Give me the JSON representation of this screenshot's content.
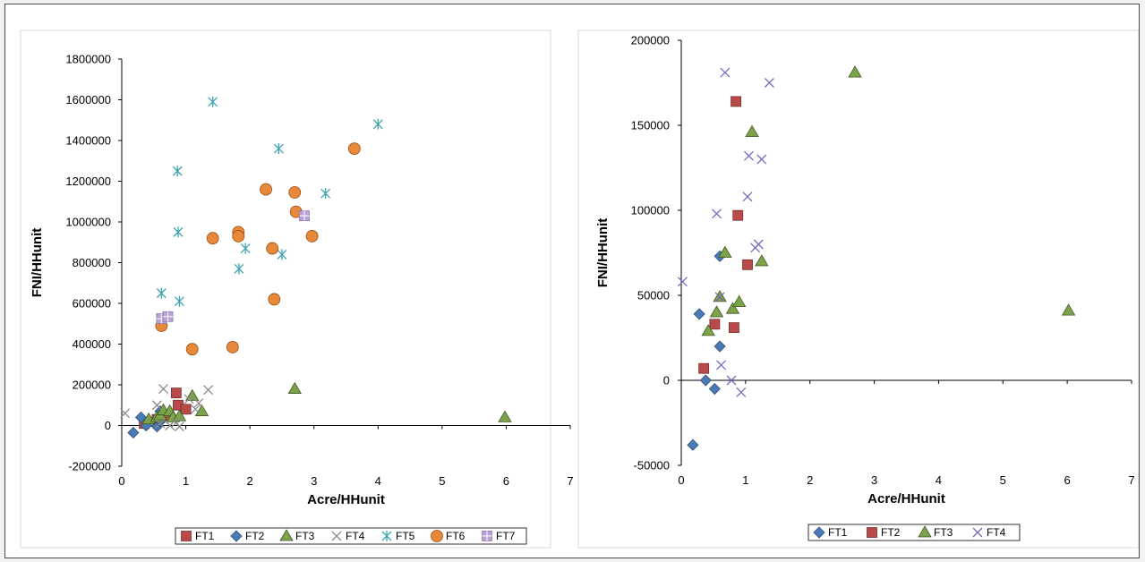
{
  "chart_data": [
    {
      "type": "scatter",
      "xlabel": "Acre/HHunit",
      "ylabel": "FNI/HHunit",
      "xlim": [
        0,
        7
      ],
      "ylim": [
        -200000,
        1800000
      ],
      "xticks": [
        "0",
        "1",
        "2",
        "3",
        "4",
        "5",
        "6",
        "7"
      ],
      "yticks": [
        "-200000",
        "0",
        "200000",
        "400000",
        "600000",
        "800000",
        "1000000",
        "1200000",
        "1400000",
        "1600000",
        "1800000"
      ],
      "legend": "bottom",
      "series": [
        {
          "name": "FT1",
          "marker": "square",
          "color": "#b94a4a",
          "points": [
            [
              0.85,
              160000
            ],
            [
              0.88,
              100000
            ],
            [
              1.0,
              80000
            ],
            [
              0.35,
              10000
            ],
            [
              0.55,
              30000
            ],
            [
              0.7,
              50000
            ]
          ]
        },
        {
          "name": "FT2",
          "marker": "diamond",
          "color": "#4b7bb5",
          "points": [
            [
              0.18,
              -35000
            ],
            [
              0.3,
              40000
            ],
            [
              0.38,
              0
            ],
            [
              0.55,
              -5000
            ],
            [
              0.6,
              20000
            ],
            [
              0.6,
              70000
            ]
          ]
        },
        {
          "name": "FT3",
          "marker": "triangle",
          "color": "#7da34a",
          "points": [
            [
              0.42,
              30000
            ],
            [
              0.55,
              40000
            ],
            [
              0.6,
              50000
            ],
            [
              0.65,
              75000
            ],
            [
              0.75,
              70000
            ],
            [
              0.8,
              40000
            ],
            [
              0.9,
              45000
            ],
            [
              1.1,
              145000
            ],
            [
              1.25,
              70000
            ],
            [
              2.7,
              180000
            ],
            [
              5.98,
              40000
            ]
          ]
        },
        {
          "name": "FT4",
          "marker": "x",
          "color": "#8a8a8a",
          "points": [
            [
              0.05,
              60000
            ],
            [
              0.55,
              100000
            ],
            [
              0.6,
              10000
            ],
            [
              0.65,
              180000
            ],
            [
              0.75,
              0
            ],
            [
              0.85,
              15000
            ],
            [
              0.9,
              -5000
            ],
            [
              1.05,
              130000
            ],
            [
              1.15,
              80000
            ],
            [
              1.2,
              110000
            ],
            [
              1.35,
              175000
            ]
          ]
        },
        {
          "name": "FT5",
          "marker": "star",
          "color": "#3ea3b0",
          "points": [
            [
              0.62,
              650000
            ],
            [
              0.87,
              1250000
            ],
            [
              0.88,
              950000
            ],
            [
              0.9,
              610000
            ],
            [
              1.42,
              1590000
            ],
            [
              1.83,
              770000
            ],
            [
              1.93,
              870000
            ],
            [
              2.45,
              1360000
            ],
            [
              2.5,
              840000
            ],
            [
              3.18,
              1140000
            ],
            [
              4.0,
              1480000
            ]
          ]
        },
        {
          "name": "FT6",
          "marker": "circle",
          "color": "#e8883a",
          "points": [
            [
              0.62,
              490000
            ],
            [
              1.1,
              375000
            ],
            [
              1.42,
              920000
            ],
            [
              1.73,
              385000
            ],
            [
              1.82,
              950000
            ],
            [
              1.82,
              930000
            ],
            [
              2.25,
              1160000
            ],
            [
              2.35,
              870000
            ],
            [
              2.38,
              620000
            ],
            [
              2.7,
              1145000
            ],
            [
              2.72,
              1050000
            ],
            [
              2.97,
              930000
            ],
            [
              3.63,
              1360000
            ]
          ]
        },
        {
          "name": "FT7",
          "marker": "square-cross",
          "color": "#b9a3d6",
          "points": [
            [
              0.62,
              525000
            ],
            [
              0.72,
              535000
            ],
            [
              2.85,
              1030000
            ]
          ]
        }
      ]
    },
    {
      "type": "scatter",
      "xlabel": "Acre/HHunit",
      "ylabel": "FNI/HHunit",
      "xlim": [
        0,
        7
      ],
      "ylim": [
        -50000,
        200000
      ],
      "xticks": [
        "0",
        "1",
        "2",
        "3",
        "4",
        "5",
        "6",
        "7"
      ],
      "yticks": [
        "-50000",
        "0",
        "50000",
        "100000",
        "150000",
        "200000"
      ],
      "legend": "bottom",
      "series": [
        {
          "name": "FT1",
          "marker": "diamond",
          "color": "#4b7bb5",
          "points": [
            [
              0.18,
              -38000
            ],
            [
              0.28,
              39000
            ],
            [
              0.38,
              0
            ],
            [
              0.52,
              -5000
            ],
            [
              0.6,
              20000
            ],
            [
              0.6,
              73000
            ]
          ]
        },
        {
          "name": "FT2",
          "marker": "square",
          "color": "#b94a4a",
          "points": [
            [
              0.35,
              7000
            ],
            [
              0.52,
              33000
            ],
            [
              0.82,
              31000
            ],
            [
              0.85,
              164000
            ],
            [
              0.88,
              97000
            ],
            [
              1.03,
              68000
            ]
          ]
        },
        {
          "name": "FT3",
          "marker": "triangle",
          "color": "#7da34a",
          "points": [
            [
              0.42,
              29000
            ],
            [
              0.55,
              40000
            ],
            [
              0.6,
              49000
            ],
            [
              0.68,
              75000
            ],
            [
              0.8,
              42000
            ],
            [
              0.9,
              46000
            ],
            [
              1.1,
              146000
            ],
            [
              1.25,
              70000
            ],
            [
              2.7,
              181000
            ],
            [
              6.02,
              41000
            ]
          ]
        },
        {
          "name": "FT4",
          "marker": "x",
          "color": "#7b68c0",
          "points": [
            [
              0.02,
              58000
            ],
            [
              0.55,
              98000
            ],
            [
              0.6,
              49000
            ],
            [
              0.62,
              9000
            ],
            [
              0.68,
              181000
            ],
            [
              0.78,
              0
            ],
            [
              0.93,
              -7000
            ],
            [
              1.03,
              108000
            ],
            [
              1.05,
              132000
            ],
            [
              1.15,
              78000
            ],
            [
              1.2,
              80000
            ],
            [
              1.25,
              130000
            ],
            [
              1.37,
              175000
            ]
          ]
        }
      ]
    }
  ]
}
